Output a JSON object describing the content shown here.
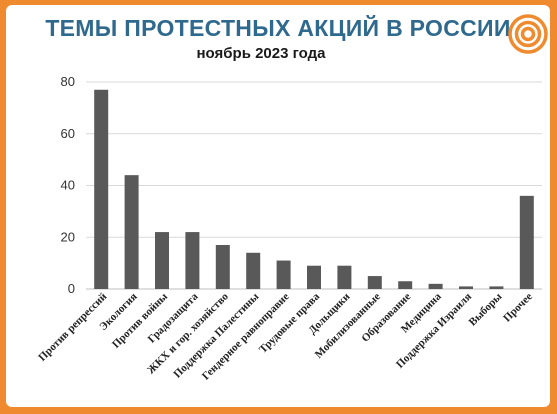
{
  "colors": {
    "background": "#f08a2e",
    "bar": "#595959",
    "title": "#2f6a8e",
    "gridline": "#d9d9d9",
    "logo": "#f08a2e"
  },
  "logo_icon": "concentric-target",
  "chart_data": {
    "type": "bar",
    "title": "ТЕМЫ ПРОТЕСТНЫХ АКЦИЙ В РОССИИ",
    "subtitle": "ноябрь 2023 года",
    "categories": [
      "Против репрессий",
      "Экология",
      "Против войны",
      "Градозащита",
      "ЖКХ и гор. хозяйство",
      "Поддержка Палестины",
      "Гендерное равноправие",
      "Трудовые права",
      "Дольщики",
      "Мобилизованные",
      "Образование",
      "Медицина",
      "Поддержка Израиля",
      "Выборы",
      "Прочее"
    ],
    "values": [
      77,
      44,
      22,
      22,
      17,
      14,
      11,
      9,
      9,
      5,
      3,
      2,
      1,
      1,
      36
    ],
    "yticks": [
      "0",
      "20",
      "40",
      "60",
      "80"
    ],
    "ylim": [
      0,
      80
    ],
    "grid": true,
    "legend": "none"
  }
}
